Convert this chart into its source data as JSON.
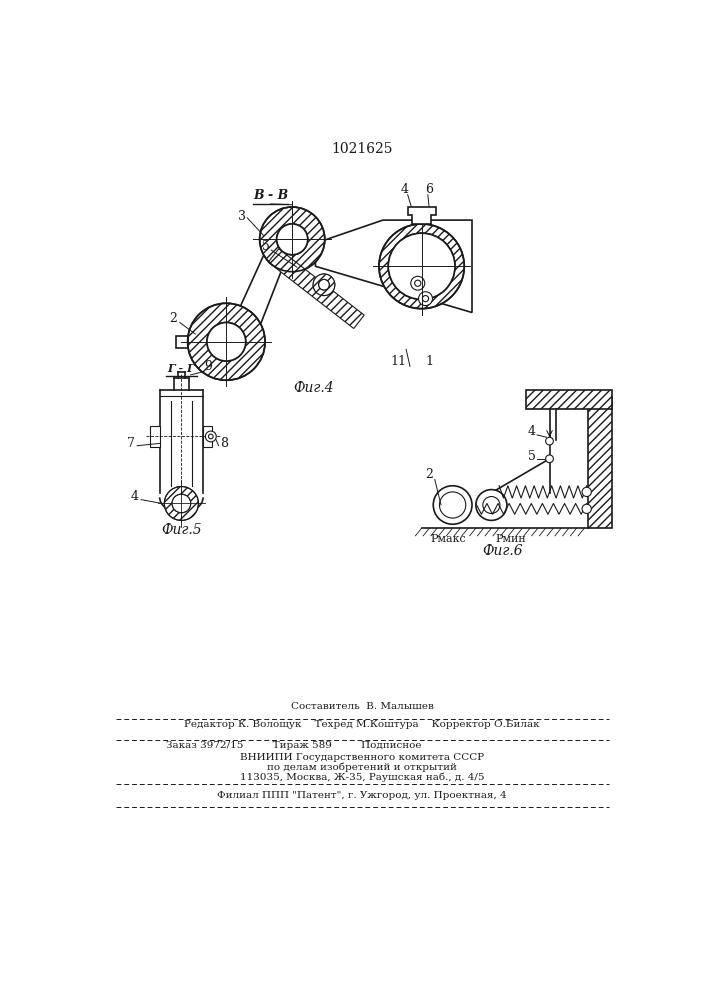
{
  "title": "1021625",
  "background_color": "#ffffff",
  "line_color": "#1a1a1a",
  "fig4_label": "Фиг.4",
  "fig5_label": "Фиг.5",
  "fig6_label": "Фиг.6",
  "section_BB": "В - В",
  "section_GG": "Г - Г",
  "footer_lines": [
    "Составитель  В. Малышев",
    "Редактор К. Волощук    Техред М.Коштура    Корректор О.Билак",
    "Заказ 3972/15         Тираж 589         Подписное",
    "ВНИИПИ Государственного комитета СССР",
    "по делам изобретений и открытий",
    "113035, Москва, Ж-35, Раушская наб., д. 4/5",
    "Филиал ППП \"Патент\", г. Ужгород, ул. Проектная, 4"
  ]
}
